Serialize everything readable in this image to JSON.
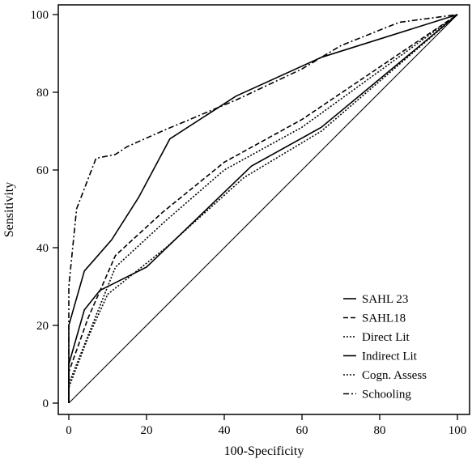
{
  "chart_data": {
    "type": "line",
    "title": "",
    "xlabel": "100-Specificity",
    "ylabel": "Sensitivity",
    "xlim": [
      0,
      100
    ],
    "ylim": [
      0,
      100
    ],
    "xticks": [
      "0",
      "20",
      "40",
      "60",
      "80",
      "100"
    ],
    "yticks": [
      "0",
      "20",
      "40",
      "60",
      "80",
      "100"
    ],
    "grid": false,
    "legend_position": "bottom-right",
    "series": [
      {
        "name": "SAHL 23",
        "dash": "solid",
        "color": "#000000",
        "points": [
          [
            0,
            0
          ],
          [
            0,
            20
          ],
          [
            4,
            34
          ],
          [
            11,
            42
          ],
          [
            18,
            53
          ],
          [
            26,
            68
          ],
          [
            43,
            79
          ],
          [
            65,
            89
          ],
          [
            100,
            100
          ]
        ]
      },
      {
        "name": "SAHL18",
        "dash": "dashed",
        "color": "#000000",
        "points": [
          [
            0,
            0
          ],
          [
            0,
            8
          ],
          [
            5,
            22
          ],
          [
            12,
            38
          ],
          [
            24,
            49
          ],
          [
            40,
            62
          ],
          [
            60,
            73
          ],
          [
            100,
            100
          ]
        ]
      },
      {
        "name": "Direct Lit",
        "dash": "dotted",
        "color": "#000000",
        "points": [
          [
            0,
            0
          ],
          [
            0,
            5
          ],
          [
            6,
            20
          ],
          [
            12,
            35
          ],
          [
            25,
            47
          ],
          [
            40,
            60
          ],
          [
            60,
            71
          ],
          [
            100,
            100
          ]
        ]
      },
      {
        "name": "Indirect Lit",
        "dash": "solid",
        "color": "#000000",
        "points": [
          [
            0,
            0
          ],
          [
            0,
            10
          ],
          [
            4,
            24
          ],
          [
            8,
            29
          ],
          [
            20,
            35
          ],
          [
            47,
            61
          ],
          [
            65,
            71
          ],
          [
            100,
            100
          ]
        ]
      },
      {
        "name": "Cogn. Assess",
        "dash": "dotted",
        "color": "#000000",
        "points": [
          [
            0,
            0
          ],
          [
            0,
            4
          ],
          [
            5,
            17
          ],
          [
            10,
            28
          ],
          [
            25,
            40
          ],
          [
            45,
            58
          ],
          [
            65,
            70
          ],
          [
            100,
            100
          ]
        ]
      },
      {
        "name": "Schooling",
        "dash": "dashdot",
        "color": "#000000",
        "points": [
          [
            0,
            0
          ],
          [
            0,
            30
          ],
          [
            2,
            50
          ],
          [
            7,
            63
          ],
          [
            12,
            64
          ],
          [
            15,
            66
          ],
          [
            24,
            70
          ],
          [
            43,
            78
          ],
          [
            60,
            86
          ],
          [
            70,
            92
          ],
          [
            85,
            98
          ],
          [
            100,
            100
          ]
        ]
      },
      {
        "name": "",
        "dash": "solid",
        "color": "#000000",
        "points": [
          [
            0,
            0
          ],
          [
            100,
            100
          ]
        ]
      }
    ]
  }
}
